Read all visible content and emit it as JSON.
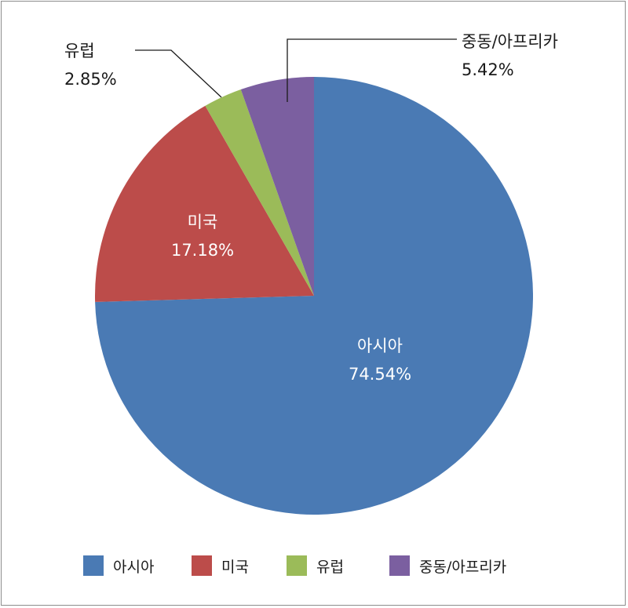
{
  "chart_data": {
    "type": "pie",
    "title": "",
    "categories": [
      "아시아",
      "미국",
      "유럽",
      "중동/아프리카"
    ],
    "values": [
      74.54,
      17.18,
      2.85,
      5.42
    ],
    "value_labels": [
      "74.54%",
      "17.18%",
      "2.85%",
      "5.42%"
    ],
    "colors": [
      "#4a7ab4",
      "#bc4c4a",
      "#9bbb59",
      "#7b5fa0"
    ],
    "start": "12 o'clock",
    "direction": "clockwise",
    "legend": "bottom",
    "label_style": [
      "inside",
      "inside",
      "outside-callout",
      "outside-callout"
    ]
  }
}
